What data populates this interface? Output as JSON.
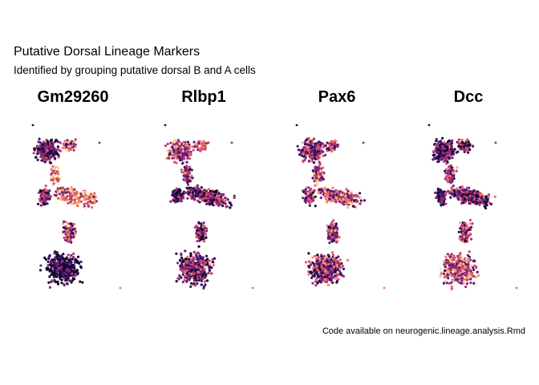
{
  "title": "Putative Dorsal Lineage Markers",
  "subtitle": "Identified by grouping putative dorsal B and A cells",
  "caption": "Code available on neurogenic.lineage.analysis.Rmd",
  "chart_data": {
    "type": "scatter",
    "description_type": "UMAP feature plot (faceted)",
    "panels": [
      "Gm29260",
      "Rlbp1",
      "Pax6",
      "Dcc"
    ],
    "color_scale": {
      "name": "magma",
      "stops": [
        "#0d0829",
        "#3b0f70",
        "#8c2981",
        "#de4968",
        "#fe9f6d",
        "#fcfdbf"
      ]
    },
    "axes_visible": false,
    "grid": false,
    "legend": "none"
  }
}
